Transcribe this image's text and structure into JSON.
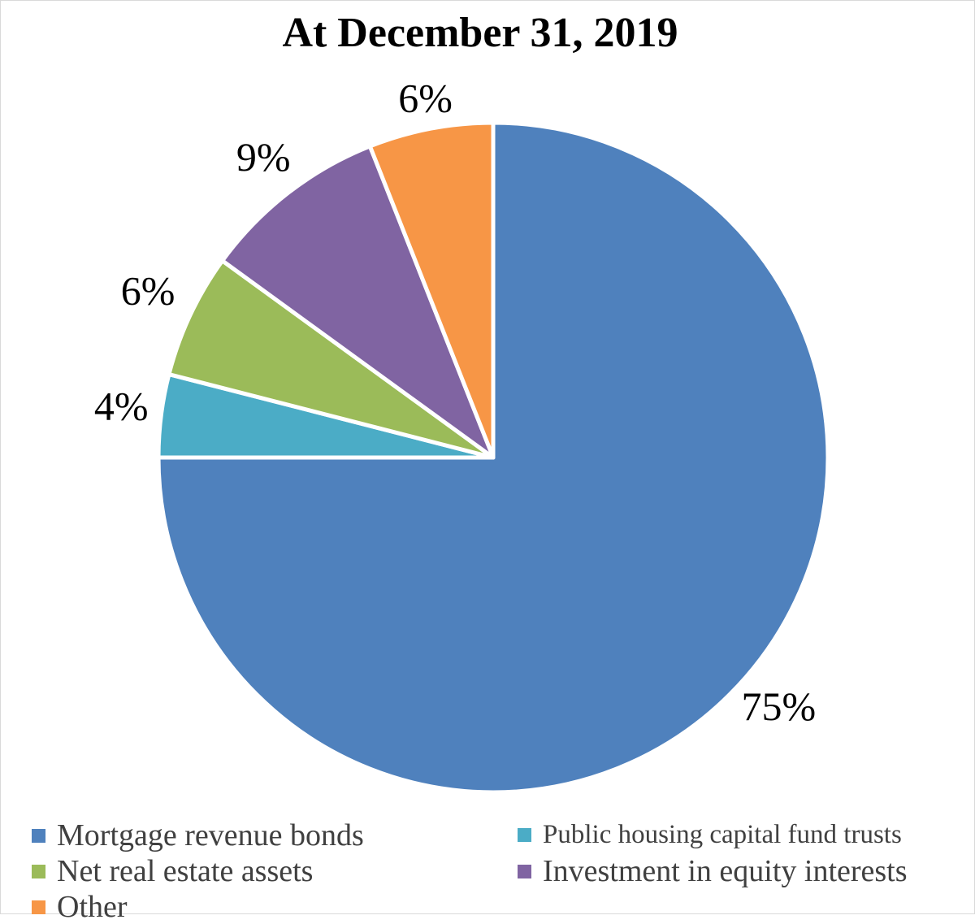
{
  "chart_data": {
    "type": "pie",
    "title": "At December 31, 2019",
    "slices": [
      {
        "name": "Mortgage revenue bonds",
        "value": 75,
        "label": "75%",
        "color": "#4f81bd"
      },
      {
        "name": "Public housing capital fund trusts",
        "value": 4,
        "label": "4%",
        "color": "#4bacc6"
      },
      {
        "name": "Net real estate assets",
        "value": 6,
        "label": "6%",
        "color": "#9bbb59"
      },
      {
        "name": "Investment in equity interests",
        "value": 9,
        "label": "9%",
        "color": "#8064a2"
      },
      {
        "name": "Other",
        "value": 6,
        "label": "6%",
        "color": "#f79646"
      }
    ],
    "legend_position": "bottom"
  }
}
